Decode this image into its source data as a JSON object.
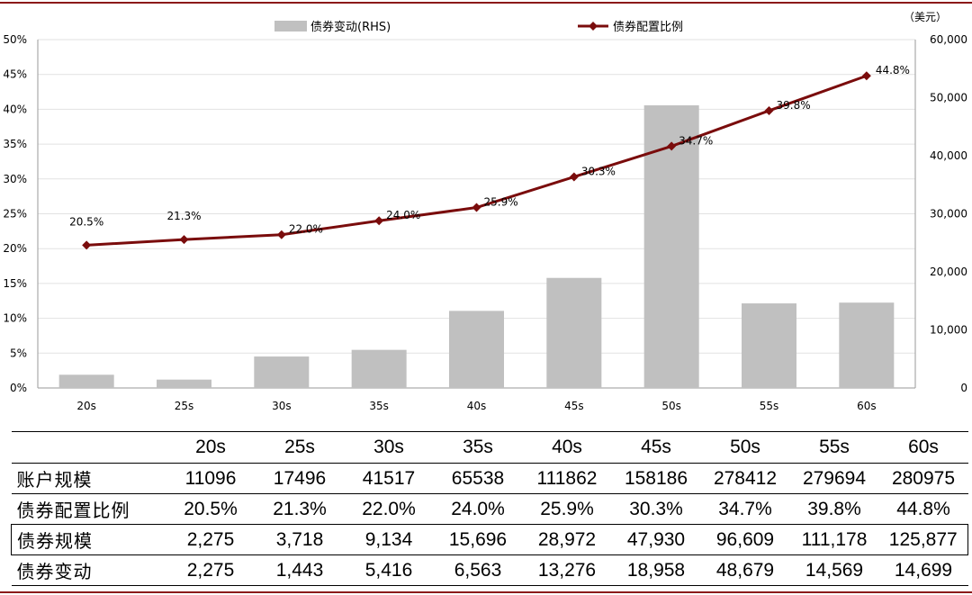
{
  "chart_data": {
    "type": "bar+line",
    "categories": [
      "20s",
      "25s",
      "30s",
      "35s",
      "40s",
      "45s",
      "50s",
      "55s",
      "60s"
    ],
    "series": [
      {
        "name": "债券变动(RHS)",
        "type": "bar",
        "axis": "right",
        "color": "#c0c0c0",
        "values": [
          2275,
          1443,
          5416,
          6563,
          13276,
          18958,
          48679,
          14569,
          14699
        ]
      },
      {
        "name": "债券配置比例",
        "type": "line",
        "axis": "left",
        "color": "#7a0c0c",
        "values": [
          20.5,
          21.3,
          22.0,
          24.0,
          25.9,
          30.3,
          34.7,
          39.8,
          44.8
        ],
        "labels": [
          "20.5%",
          "21.3%",
          "22.0%",
          "24.0%",
          "25.9%",
          "30.3%",
          "34.7%",
          "39.8%",
          "44.8%"
        ]
      }
    ],
    "left_axis": {
      "ylim": [
        0,
        50
      ],
      "ticks": [
        "0%",
        "5%",
        "10%",
        "15%",
        "20%",
        "25%",
        "30%",
        "35%",
        "40%",
        "45%",
        "50%"
      ]
    },
    "right_axis": {
      "ylim": [
        0,
        60000
      ],
      "unit": "（美元）",
      "ticks": [
        "0",
        "10,000",
        "20,000",
        "30,000",
        "40,000",
        "50,000",
        "60,000"
      ]
    },
    "legend": {
      "position": "top"
    }
  },
  "table": {
    "headers": [
      "",
      "20s",
      "25s",
      "30s",
      "35s",
      "40s",
      "45s",
      "50s",
      "55s",
      "60s"
    ],
    "rows": [
      {
        "label": "账户规模",
        "values": [
          "11096",
          "17496",
          "41517",
          "65538",
          "111862",
          "158186",
          "278412",
          "279694",
          "280975"
        ]
      },
      {
        "label": "债券配置比例",
        "values": [
          "20.5%",
          "21.3%",
          "22.0%",
          "24.0%",
          "25.9%",
          "30.3%",
          "34.7%",
          "39.8%",
          "44.8%"
        ]
      },
      {
        "label": "债券规模",
        "values": [
          "2,275",
          "3,718",
          "9,134",
          "15,696",
          "28,972",
          "47,930",
          "96,609",
          "111,178",
          "125,877"
        ]
      },
      {
        "label": "债券变动",
        "values": [
          "2,275",
          "1,443",
          "5,416",
          "6,563",
          "13,276",
          "18,958",
          "48,679",
          "14,569",
          "14,699"
        ]
      }
    ]
  }
}
